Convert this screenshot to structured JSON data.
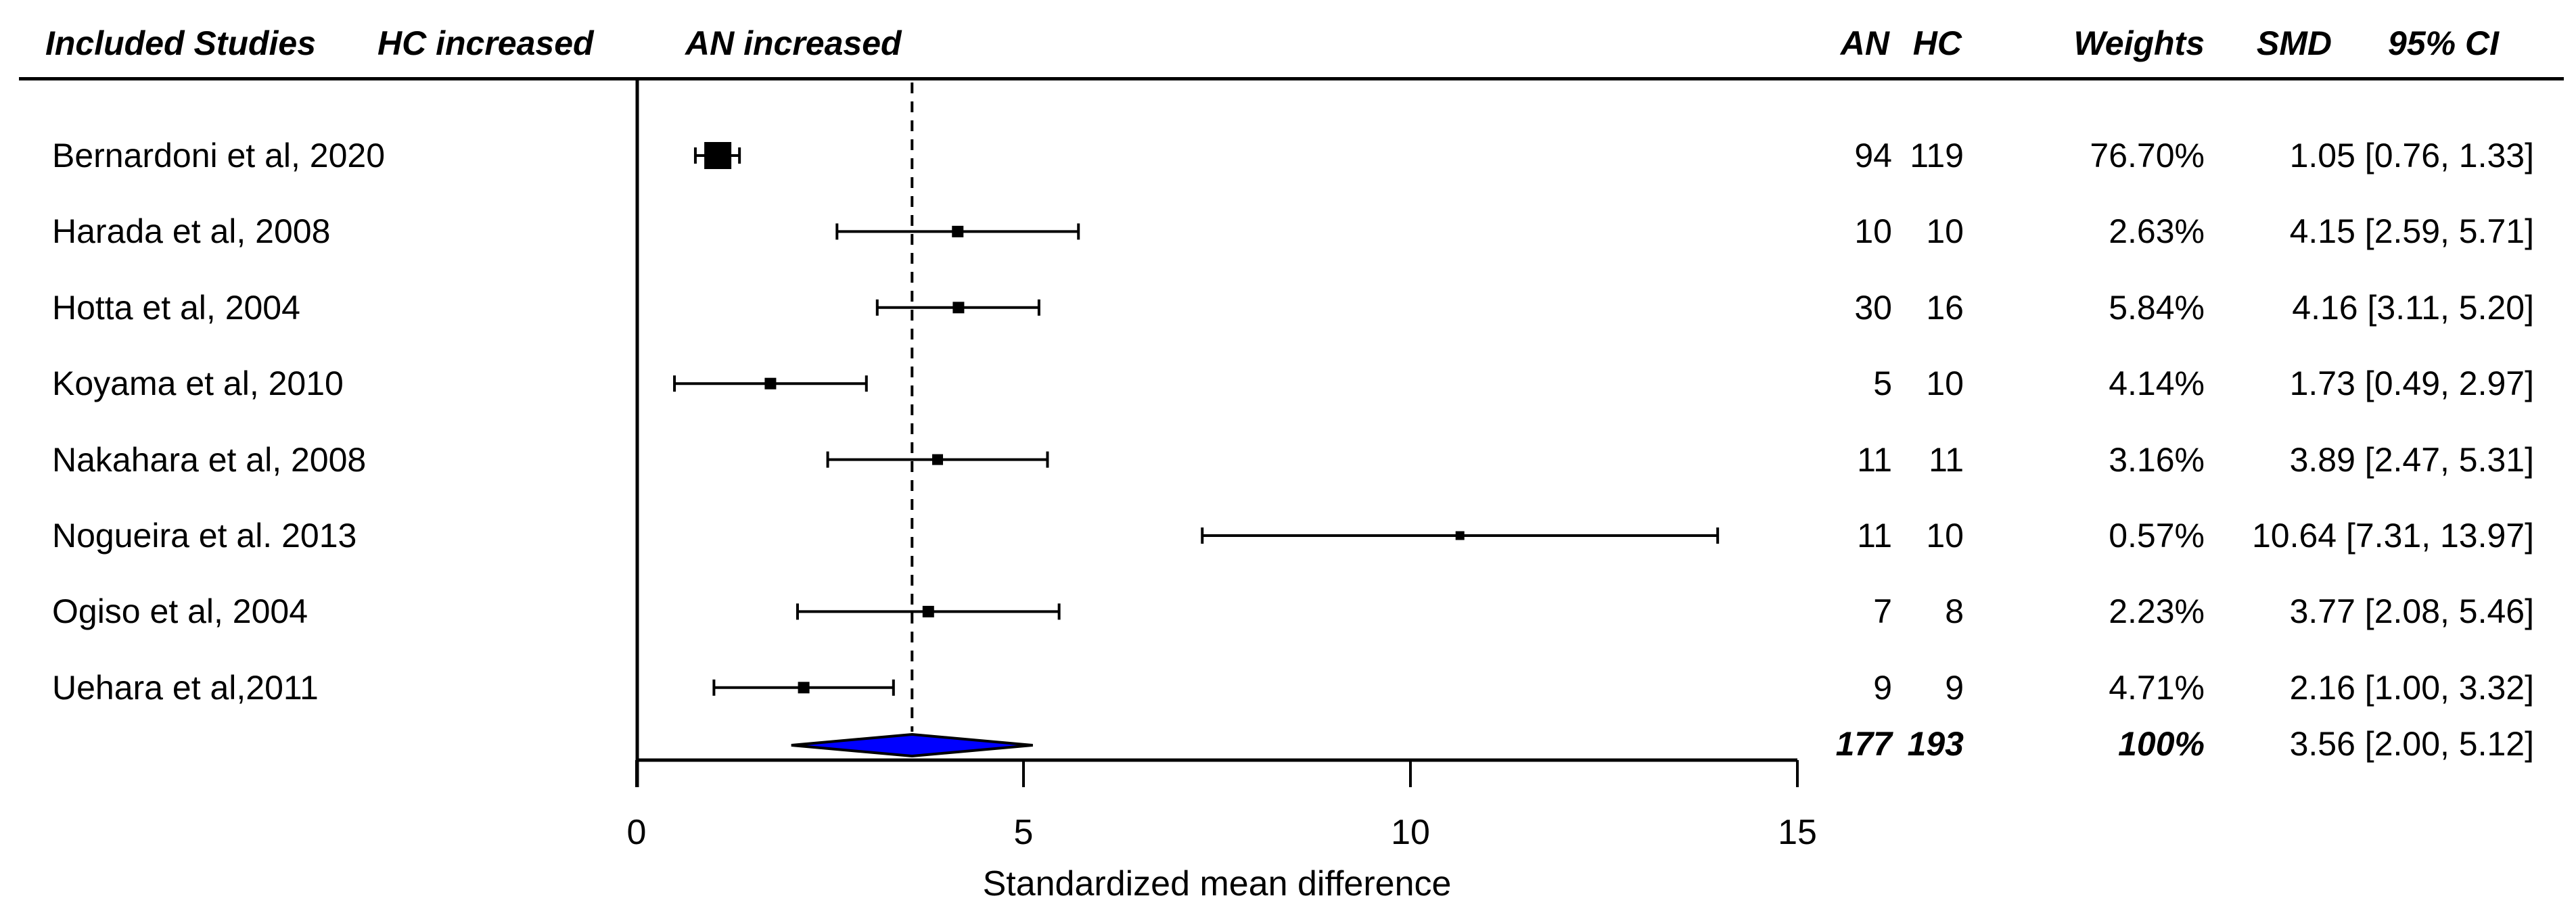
{
  "chart_data": {
    "type": "forest",
    "xlabel": "Standardized mean difference",
    "x_ticks": [
      0,
      5,
      10,
      15
    ],
    "xlim": [
      0,
      15
    ],
    "grid": false,
    "pooled_dashed_line_at": 3.56,
    "diamond_color": "#0000FF",
    "line_color": "#000000",
    "columns": {
      "included_studies": "Included Studies",
      "hc_increased": "HC increased",
      "an_increased": "AN increased",
      "an": "AN",
      "hc": "HC",
      "weights": "Weights",
      "smd": "SMD",
      "ci": "95% CI"
    },
    "studies": [
      {
        "label": "Bernardoni et al, 2020",
        "an": "94",
        "hc": "119",
        "weight": "76.70%",
        "smd": 1.05,
        "ci_lo": 0.76,
        "ci_hi": 1.33,
        "ci_text": "1.05 [0.76, 1.33]",
        "marker_px": 40
      },
      {
        "label": "Harada et al, 2008",
        "an": "10",
        "hc": "10",
        "weight": "2.63%",
        "smd": 4.15,
        "ci_lo": 2.59,
        "ci_hi": 5.71,
        "ci_text": "4.15 [2.59, 5.71]",
        "marker_px": 17
      },
      {
        "label": "Hotta et al, 2004",
        "an": "30",
        "hc": "16",
        "weight": "5.84%",
        "smd": 4.16,
        "ci_lo": 3.11,
        "ci_hi": 5.2,
        "ci_text": "4.16 [3.11, 5.20]",
        "marker_px": 17
      },
      {
        "label": "Koyama et al, 2010",
        "an": "5",
        "hc": "10",
        "weight": "4.14%",
        "smd": 1.73,
        "ci_lo": 0.49,
        "ci_hi": 2.97,
        "ci_text": "1.73 [0.49, 2.97]",
        "marker_px": 17
      },
      {
        "label": "Nakahara et al, 2008",
        "an": "11",
        "hc": "11",
        "weight": "3.16%",
        "smd": 3.89,
        "ci_lo": 2.47,
        "ci_hi": 5.31,
        "ci_text": "3.89 [2.47, 5.31]",
        "marker_px": 16
      },
      {
        "label": "Nogueira et al. 2013",
        "an": "11",
        "hc": "10",
        "weight": "0.57%",
        "smd": 10.64,
        "ci_lo": 7.31,
        "ci_hi": 13.97,
        "ci_text": "10.64 [7.31, 13.97]",
        "marker_px": 13
      },
      {
        "label": "Ogiso et al, 2004",
        "an": "7",
        "hc": "8",
        "weight": "2.23%",
        "smd": 3.77,
        "ci_lo": 2.08,
        "ci_hi": 5.46,
        "ci_text": "3.77 [2.08, 5.46]",
        "marker_px": 17
      },
      {
        "label": "Uehara et al,2011",
        "an": "9",
        "hc": "9",
        "weight": "4.71%",
        "smd": 2.16,
        "ci_lo": 1.0,
        "ci_hi": 3.32,
        "ci_text": "2.16 [1.00, 3.32]",
        "marker_px": 17
      }
    ],
    "total": {
      "an": "177",
      "hc": "193",
      "weight": "100%",
      "smd": 3.56,
      "ci_lo": 2.0,
      "ci_hi": 5.12,
      "ci_text": "3.56 [2.00, 5.12]"
    }
  }
}
